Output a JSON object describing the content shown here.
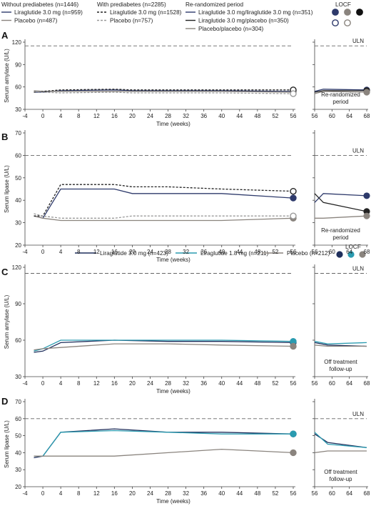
{
  "legend_top": {
    "groups": [
      {
        "title": "Without prediabetes (n=1446)",
        "items": [
          {
            "label": "Liraglutide 3.0 mg (n=959)",
            "color": "#2e3a6b",
            "dash": "solid"
          },
          {
            "label": "Placebo (n=487)",
            "color": "#8a847e",
            "dash": "solid"
          }
        ]
      },
      {
        "title": "With prediabetes (n=2285)",
        "items": [
          {
            "label": "Liraglutide 3.0 mg (n=1528)",
            "color": "#222222",
            "dash": "dashed"
          },
          {
            "label": "Placebo (n=757)",
            "color": "#999999",
            "dash": "dashed"
          }
        ]
      },
      {
        "title": "Re-randomized period",
        "items": [
          {
            "label": "Liraglutide 3.0 mg/liraglutide 3.0 mg (n=351)",
            "color": "#2e3a6b",
            "dash": "solid"
          },
          {
            "label": "Liraglutide 3.0 mg/placebo (n=350)",
            "color": "#222222",
            "dash": "solid"
          },
          {
            "label": "Placebo/placebo (n=304)",
            "color": "#8a847e",
            "dash": "solid"
          }
        ]
      }
    ],
    "locf_label": "LOCF",
    "locf_markers": [
      {
        "fill": "#2e3a6b",
        "stroke": "#2e3a6b"
      },
      {
        "fill": "#8a847e",
        "stroke": "#8a847e"
      },
      {
        "fill": "#111111",
        "stroke": "#111111"
      },
      {
        "fill": "#ffffff",
        "stroke": "#2e3a6b"
      },
      {
        "fill": "#ffffff",
        "stroke": "#8a847e"
      }
    ]
  },
  "legend_mid": {
    "items": [
      {
        "label": "Liraglutide 3.0 mg (n=423)",
        "color": "#1f2f5c"
      },
      {
        "label": "Liraglutide 1.8 mg (n=211)",
        "color": "#2a9bb0"
      },
      {
        "label": "Placebo (n=212)",
        "color": "#8a847e"
      }
    ],
    "locf_label": "LOCF",
    "locf_markers": [
      {
        "fill": "#1f2f5c",
        "stroke": "#1f2f5c"
      },
      {
        "fill": "#2a9bb0",
        "stroke": "#2a9bb0"
      },
      {
        "fill": "#8a847e",
        "stroke": "#8a847e"
      }
    ]
  },
  "chart_data": [
    {
      "panel": "A",
      "type": "line",
      "ylabel": "Serum amylase (U/L)",
      "xlabel": "Time (weeks)",
      "xlim": [
        -4,
        56
      ],
      "ylim": [
        30,
        120
      ],
      "xticks": [
        -4,
        0,
        4,
        8,
        12,
        16,
        20,
        24,
        28,
        32,
        36,
        40,
        44,
        48,
        52,
        56
      ],
      "yticks": [
        30,
        60,
        90,
        120
      ],
      "uln": 115,
      "uln_label": "ULN",
      "series": [
        {
          "color": "#2e3a6b",
          "dash": "solid",
          "x": [
            -2,
            0,
            4,
            16,
            20,
            28,
            40,
            56
          ],
          "y": [
            53,
            53,
            55,
            56,
            55,
            55,
            55,
            54
          ],
          "locf": 54,
          "locf_style": "open"
        },
        {
          "color": "#8a847e",
          "dash": "solid",
          "x": [
            -2,
            0,
            4,
            16,
            20,
            28,
            40,
            56
          ],
          "y": [
            55,
            54,
            54,
            54,
            54,
            54,
            54,
            53
          ],
          "locf": 53,
          "locf_style": "open"
        },
        {
          "color": "#222222",
          "dash": "dashed",
          "x": [
            -2,
            0,
            4,
            16,
            20,
            28,
            40,
            56
          ],
          "y": [
            53,
            54,
            56,
            57,
            56,
            56,
            56,
            56
          ],
          "locf": 56,
          "locf_style": "open"
        },
        {
          "color": "#999999",
          "dash": "dashed",
          "x": [
            -2,
            0,
            4,
            16,
            20,
            28,
            40,
            56
          ],
          "y": [
            54,
            53,
            52,
            53,
            52,
            52,
            52,
            51
          ],
          "locf": 51,
          "locf_style": "open"
        }
      ],
      "side": {
        "xlim": [
          56,
          68
        ],
        "xticks": [
          56,
          60,
          64,
          68
        ],
        "note": [
          "Re-randomized",
          "period"
        ],
        "series": [
          {
            "color": "#2e3a6b",
            "dash": "solid",
            "x": [
              56,
              58,
              68
            ],
            "y": [
              54,
              57,
              56
            ],
            "locf": 56
          },
          {
            "color": "#222222",
            "dash": "solid",
            "x": [
              56,
              58,
              68
            ],
            "y": [
              53,
              55,
              55
            ],
            "locf": 55
          },
          {
            "color": "#8a847e",
            "dash": "solid",
            "x": [
              56,
              58,
              68
            ],
            "y": [
              51,
              54,
              53
            ],
            "locf": 53
          }
        ]
      }
    },
    {
      "panel": "B",
      "type": "line",
      "ylabel": "Serum lipase (U/L)",
      "xlabel": "Time (weeks)",
      "xlim": [
        -4,
        56
      ],
      "ylim": [
        20,
        70
      ],
      "xticks": [
        -4,
        0,
        4,
        8,
        12,
        16,
        20,
        24,
        28,
        32,
        36,
        40,
        44,
        48,
        52,
        56
      ],
      "yticks": [
        20,
        30,
        40,
        50,
        60,
        70
      ],
      "uln": 60,
      "uln_label": "ULN",
      "series": [
        {
          "color": "#2e3a6b",
          "dash": "solid",
          "x": [
            -2,
            0,
            4,
            16,
            20,
            28,
            40,
            56
          ],
          "y": [
            33,
            32,
            45,
            45,
            43,
            43,
            43,
            41
          ],
          "locf": 41,
          "locf_style": "filled"
        },
        {
          "color": "#8a847e",
          "dash": "solid",
          "x": [
            -2,
            0,
            4,
            16,
            20,
            28,
            40,
            56
          ],
          "y": [
            33,
            32,
            31,
            31,
            31,
            31,
            31,
            32
          ],
          "locf": 32,
          "locf_style": "filled"
        },
        {
          "color": "#222222",
          "dash": "dashed",
          "x": [
            -2,
            0,
            4,
            16,
            20,
            28,
            40,
            56
          ],
          "y": [
            33,
            33,
            47,
            47,
            46,
            46,
            45,
            44
          ],
          "locf": 44,
          "locf_style": "open"
        },
        {
          "color": "#999999",
          "dash": "dashed",
          "x": [
            -2,
            0,
            4,
            16,
            20,
            28,
            40,
            56
          ],
          "y": [
            34,
            33,
            32,
            32,
            33,
            33,
            33,
            33
          ],
          "locf": 33,
          "locf_style": "open"
        }
      ],
      "side": {
        "xlim": [
          56,
          68
        ],
        "xticks": [
          56,
          60,
          64,
          68
        ],
        "note": [
          "Re-randomized",
          "period"
        ],
        "series": [
          {
            "color": "#2e3a6b",
            "dash": "solid",
            "x": [
              56,
              58,
              68
            ],
            "y": [
              39,
              43,
              42
            ],
            "locf": 42
          },
          {
            "color": "#222222",
            "dash": "solid",
            "x": [
              56,
              58,
              68
            ],
            "y": [
              43,
              39,
              35
            ],
            "locf": 35
          },
          {
            "color": "#8a847e",
            "dash": "solid",
            "x": [
              56,
              58,
              68
            ],
            "y": [
              32,
              32,
              33
            ],
            "locf": 33
          }
        ]
      }
    },
    {
      "panel": "C",
      "type": "line",
      "ylabel": "Serum amylase (U/L)",
      "xlabel": "Time (weeks)",
      "xlim": [
        -4,
        56
      ],
      "ylim": [
        30,
        120
      ],
      "xticks": [
        -4,
        0,
        4,
        8,
        12,
        16,
        20,
        24,
        28,
        32,
        36,
        40,
        44,
        48,
        52,
        56
      ],
      "yticks": [
        30,
        60,
        90,
        120
      ],
      "uln": 115,
      "uln_label": "ULN",
      "series": [
        {
          "color": "#1f2f5c",
          "dash": "solid",
          "x": [
            -2,
            0,
            4,
            16,
            28,
            40,
            56
          ],
          "y": [
            50,
            51,
            58,
            60,
            59,
            59,
            58
          ],
          "locf": 58,
          "locf_style": "filled"
        },
        {
          "color": "#2a9bb0",
          "dash": "solid",
          "x": [
            -2,
            0,
            4,
            16,
            28,
            40,
            56
          ],
          "y": [
            51,
            53,
            60,
            60,
            60,
            60,
            59
          ],
          "locf": 59,
          "locf_style": "filled"
        },
        {
          "color": "#8a847e",
          "dash": "solid",
          "x": [
            -2,
            0,
            4,
            16,
            28,
            40,
            56
          ],
          "y": [
            52,
            53,
            54,
            57,
            57,
            56,
            55
          ],
          "locf": 55,
          "locf_style": "filled"
        }
      ],
      "side": {
        "xlim": [
          56,
          68
        ],
        "xticks": [
          56,
          60,
          64,
          68
        ],
        "note": [
          "Off treatment",
          "follow-up"
        ],
        "series": [
          {
            "color": "#1f2f5c",
            "dash": "solid",
            "x": [
              56,
              59,
              68
            ],
            "y": [
              58,
              56,
              55
            ]
          },
          {
            "color": "#2a9bb0",
            "dash": "solid",
            "x": [
              56,
              59,
              68
            ],
            "y": [
              59,
              57,
              58
            ]
          },
          {
            "color": "#8a847e",
            "dash": "solid",
            "x": [
              56,
              59,
              68
            ],
            "y": [
              56,
              55,
              55
            ]
          }
        ]
      }
    },
    {
      "panel": "D",
      "type": "line",
      "ylabel": "Serum lipase (U/L)",
      "xlabel": "Time (weeks)",
      "xlim": [
        -4,
        56
      ],
      "ylim": [
        20,
        70
      ],
      "xticks": [
        -4,
        0,
        4,
        8,
        12,
        16,
        20,
        24,
        28,
        32,
        36,
        40,
        44,
        48,
        52,
        56
      ],
      "yticks": [
        20,
        30,
        40,
        50,
        60,
        70
      ],
      "uln": 60,
      "uln_label": "ULN",
      "series": [
        {
          "color": "#1f2f5c",
          "dash": "solid",
          "x": [
            -2,
            0,
            4,
            16,
            28,
            40,
            56
          ],
          "y": [
            37,
            38,
            52,
            54,
            52,
            52,
            51
          ],
          "locf": 51,
          "locf_style": "filled"
        },
        {
          "color": "#2a9bb0",
          "dash": "solid",
          "x": [
            -2,
            0,
            4,
            16,
            28,
            40,
            56
          ],
          "y": [
            38,
            38,
            52,
            53,
            52,
            51,
            51
          ],
          "locf": 51,
          "locf_style": "filled"
        },
        {
          "color": "#8a847e",
          "dash": "solid",
          "x": [
            -2,
            0,
            4,
            16,
            28,
            40,
            56
          ],
          "y": [
            38,
            38,
            38,
            38,
            40,
            42,
            40
          ],
          "locf": 40,
          "locf_style": "filled"
        }
      ],
      "side": {
        "xlim": [
          56,
          68
        ],
        "xticks": [
          56,
          60,
          64,
          68
        ],
        "note": [
          "Off treatment",
          "follow-up"
        ],
        "series": [
          {
            "color": "#1f2f5c",
            "dash": "solid",
            "x": [
              56,
              59,
              68
            ],
            "y": [
              51,
              46,
              43
            ]
          },
          {
            "color": "#2a9bb0",
            "dash": "solid",
            "x": [
              56,
              59,
              68
            ],
            "y": [
              52,
              45,
              43
            ]
          },
          {
            "color": "#8a847e",
            "dash": "solid",
            "x": [
              56,
              59,
              68
            ],
            "y": [
              40,
              41,
              41
            ]
          }
        ]
      }
    }
  ]
}
